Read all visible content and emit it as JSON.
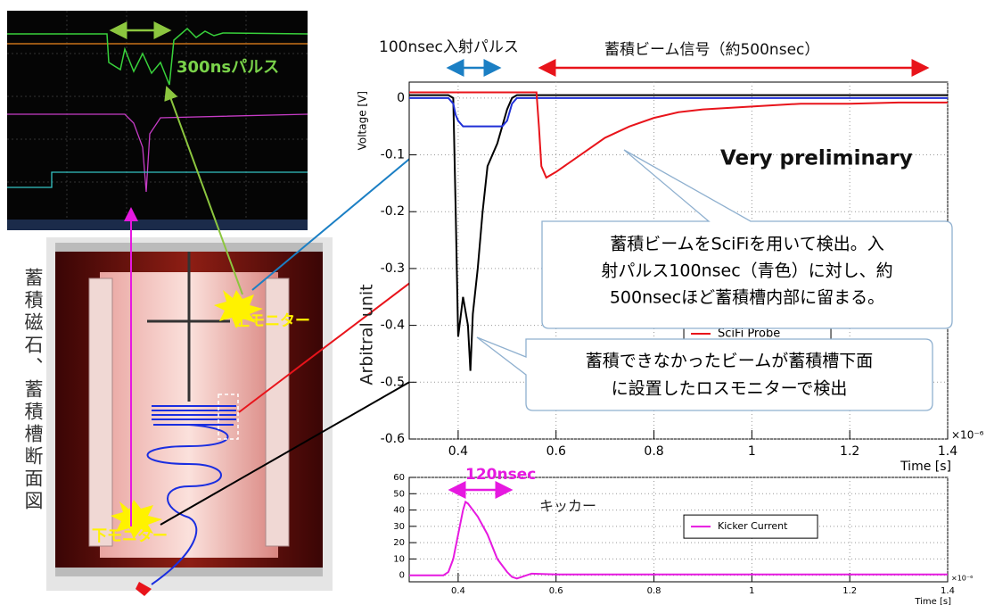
{
  "chart_data": [
    {
      "type": "line",
      "ylabel": "Voltage [V]",
      "xlabel": "Time [s]",
      "x_multiplier": "×10⁻⁶",
      "annotations": [
        "Very preliminary"
      ],
      "x": [
        3e-07,
        3.5e-07,
        3.8e-07,
        3.9e-07,
        3.95e-07,
        4e-07,
        4.1e-07,
        4.2e-07,
        4.25e-07,
        4.3e-07,
        4.4e-07,
        4.5e-07,
        4.6e-07,
        4.7e-07,
        4.8e-07,
        4.9e-07,
        5e-07,
        5.1e-07,
        5.2e-07,
        5.5e-07,
        5.6e-07,
        5.65e-07,
        5.7e-07,
        5.8e-07,
        6e-07,
        6.5e-07,
        7e-07,
        7.5e-07,
        8e-07,
        8.5e-07,
        9e-07,
        1e-06,
        1.1e-06,
        1.2e-06,
        1.3e-06,
        1.4e-06
      ],
      "series": [
        {
          "color": "#000000",
          "values": [
            0.005,
            0.005,
            0.005,
            0,
            -0.2,
            -0.42,
            -0.35,
            -0.4,
            -0.48,
            -0.38,
            -0.3,
            -0.2,
            -0.12,
            -0.1,
            -0.08,
            -0.05,
            -0.02,
            0,
            0.005,
            0.005,
            0.005,
            0.005,
            0.005,
            0.005,
            0.005,
            0.005,
            0.005,
            0.005,
            0.005,
            0.005,
            0.005,
            0.005,
            0.005,
            0.005,
            0.005,
            0.005
          ]
        },
        {
          "color": "#1f2fd6",
          "values": [
            0,
            0,
            0,
            -0.01,
            -0.03,
            -0.04,
            -0.05,
            -0.05,
            -0.05,
            -0.05,
            -0.05,
            -0.05,
            -0.05,
            -0.05,
            -0.05,
            -0.05,
            -0.04,
            -0.01,
            0,
            0,
            0,
            0,
            0,
            0,
            0,
            0,
            0,
            0,
            0,
            0,
            0,
            0,
            0,
            0,
            0,
            0
          ]
        },
        {
          "name": "SciFi Probe",
          "color": "#e8141b",
          "values": [
            0.01,
            0.01,
            0.01,
            0.01,
            0.01,
            0.01,
            0.01,
            0.01,
            0.01,
            0.01,
            0.01,
            0.01,
            0.01,
            0.01,
            0.01,
            0.01,
            0.01,
            0.01,
            0.01,
            0.01,
            0.01,
            -0.05,
            -0.12,
            -0.14,
            -0.13,
            -0.1,
            -0.07,
            -0.05,
            -0.035,
            -0.025,
            -0.02,
            -0.015,
            -0.01,
            -0.01,
            -0.008,
            -0.008
          ]
        }
      ],
      "xlim": [
        3e-07,
        1.4e-06
      ],
      "xticks": [
        {
          "value": 4e-07,
          "label": "0.4"
        },
        {
          "value": 6e-07,
          "label": "0.6"
        },
        {
          "value": 8e-07,
          "label": "0.8"
        },
        {
          "value": 1e-06,
          "label": "1"
        },
        {
          "value": 1.2e-06,
          "label": "1.2"
        },
        {
          "value": 1.4e-06,
          "label": "1.4"
        }
      ],
      "ylim": [
        -0.6,
        0.028
      ],
      "yticks": [
        0,
        -0.1,
        -0.2,
        -0.3,
        -0.4,
        -0.5,
        -0.6
      ],
      "grid": true,
      "legend": "center"
    },
    {
      "type": "line",
      "xlabel": "Time [s]",
      "x_multiplier": "×10⁻⁶",
      "annotations": [
        "120nsec",
        "キッカー"
      ],
      "x": [
        3e-07,
        3.7e-07,
        3.8e-07,
        3.9e-07,
        4e-07,
        4.1e-07,
        4.15e-07,
        4.2e-07,
        4.3e-07,
        4.4e-07,
        4.6e-07,
        4.8e-07,
        5e-07,
        5.1e-07,
        5.2e-07,
        5.5e-07,
        6e-07,
        8e-07,
        1e-06,
        1.2e-06,
        1.4e-06
      ],
      "series": [
        {
          "name": "Kicker Current",
          "color": "#e619e0",
          "values": [
            0,
            0,
            2,
            10,
            25,
            40,
            45,
            44,
            40,
            36,
            25,
            10,
            2,
            -1,
            -2,
            1,
            0.5,
            0.5,
            0.5,
            0.5,
            0.5
          ]
        }
      ],
      "xlim": [
        3e-07,
        1.4e-06
      ],
      "xticks": [
        {
          "value": 4e-07,
          "label": "0.4"
        },
        {
          "value": 6e-07,
          "label": "0.6"
        },
        {
          "value": 8e-07,
          "label": "0.8"
        },
        {
          "value": 1e-06,
          "label": "1"
        },
        {
          "value": 1.2e-06,
          "label": "1.2"
        },
        {
          "value": 1.4e-06,
          "label": "1.4"
        }
      ],
      "ylim": [
        -4,
        60
      ],
      "yticks": [
        0,
        10,
        20,
        30,
        40,
        50,
        60
      ],
      "grid": true,
      "legend": "center"
    }
  ],
  "slide": {
    "pulse_label": "100nsec入射パルス",
    "signal_label": "蓄積ビーム信号（約500nsec）",
    "scope_label": "300nsパルス",
    "upper_monitor": "上モニター",
    "lower_monitor": "下モニター",
    "diagram_caption": "蓄積磁石、蓄積槽断面図",
    "arbitrary_unit": "Arbitral unit",
    "callout_scifi": [
      "蓄積ビームをSciFiを用いて検出。入",
      "射パルス100nsec（青色）に対し、約",
      "500nsecほど蓄積槽内部に留まる。"
    ],
    "callout_loss": [
      "蓄積できなかったビームが蓄積槽下面",
      "に設置したロスモニターで検出"
    ]
  }
}
